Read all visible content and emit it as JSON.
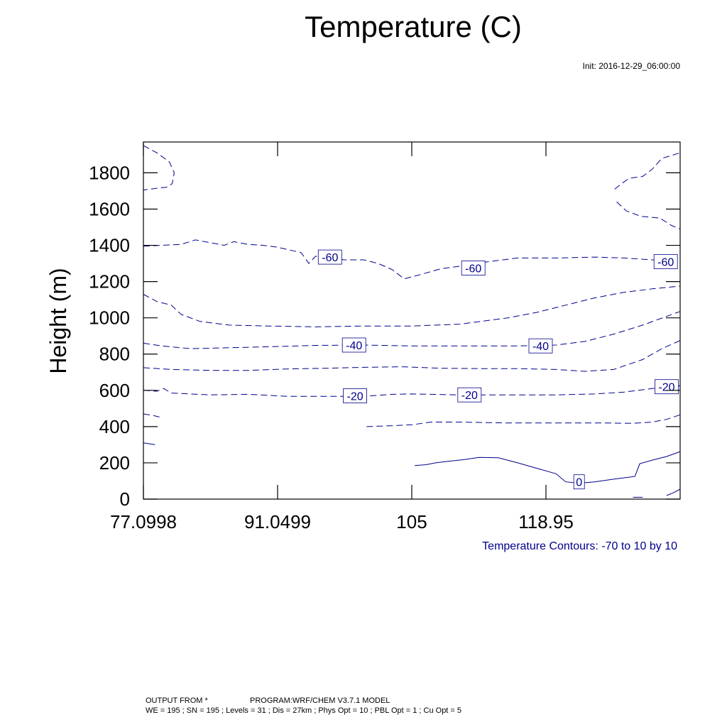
{
  "title": "Temperature   (C)",
  "init_label": "Init: 2016-12-29_06:00:00",
  "legend_label": "Temperature Contours: -70 to 10 by 10",
  "footer": {
    "line1_left": "OUTPUT FROM *",
    "line1_right": "PROGRAM:WRF/CHEM V3.7.1 MODEL",
    "line2": "WE = 195 ; SN = 195 ; Levels = 31 ; Dis = 27km ; Phys Opt = 10 ; PBL Opt = 1 ; Cu Opt = 5"
  },
  "colors": {
    "contour": "#00008b",
    "axis": "#000000",
    "background": "#ffffff"
  },
  "chart_data": {
    "type": "contour",
    "title": "Temperature   (C)",
    "xlabel": "",
    "ylabel": "Height (m)",
    "xlim": [
      77.0998,
      132.9
    ],
    "ylim": [
      0,
      1970
    ],
    "xticks": [
      77.0998,
      91.0499,
      105,
      118.95
    ],
    "xtick_labels": [
      "77.0998",
      "91.0499",
      "105",
      "118.95"
    ],
    "yticks": [
      0,
      200,
      400,
      600,
      800,
      1000,
      1200,
      1400,
      1600,
      1800
    ],
    "ytick_labels": [
      "0",
      "200",
      "400",
      "600",
      "800",
      "1000",
      "1200",
      "1400",
      "1600",
      "1800"
    ],
    "contour_levels": {
      "min": -70,
      "max": 10,
      "step": 10
    },
    "contours": [
      {
        "level": -70,
        "style": "dashed",
        "points": [
          [
            77.1,
            1950
          ],
          [
            78.5,
            1910
          ],
          [
            79.8,
            1860
          ],
          [
            80.3,
            1800
          ],
          [
            80.1,
            1740
          ],
          [
            79.5,
            1720
          ],
          [
            78.5,
            1715
          ],
          [
            77.1,
            1705
          ]
        ]
      },
      {
        "level": -70,
        "style": "dashed",
        "points": [
          [
            126.1,
            1710
          ],
          [
            126.8,
            1740
          ],
          [
            127.6,
            1770
          ],
          [
            129.0,
            1780
          ],
          [
            130.0,
            1820
          ],
          [
            131.0,
            1880
          ],
          [
            132.9,
            1910
          ]
        ]
      },
      {
        "level": -70,
        "style": "dashed",
        "points": [
          [
            126.3,
            1640
          ],
          [
            127.3,
            1590
          ],
          [
            128.8,
            1560
          ],
          [
            130.8,
            1550
          ],
          [
            132.0,
            1510
          ],
          [
            132.9,
            1490
          ]
        ]
      },
      {
        "level": -60,
        "style": "dashed",
        "points": [
          [
            77.1,
            1395
          ],
          [
            79,
            1400
          ],
          [
            81,
            1405
          ],
          [
            82.5,
            1430
          ],
          [
            84,
            1415
          ],
          [
            85.5,
            1400
          ],
          [
            86.5,
            1420
          ],
          [
            88,
            1405
          ],
          [
            89.5,
            1400
          ],
          [
            91,
            1390
          ],
          [
            93.5,
            1360
          ],
          [
            94.3,
            1300
          ],
          [
            95,
            1340
          ],
          [
            96,
            1330
          ],
          [
            98,
            1320
          ],
          [
            100,
            1320
          ],
          [
            101.5,
            1300
          ],
          [
            103,
            1265
          ],
          [
            104.2,
            1215
          ],
          [
            106,
            1240
          ],
          [
            108,
            1270
          ],
          [
            110,
            1285
          ],
          [
            113,
            1310
          ],
          [
            116,
            1330
          ],
          [
            120,
            1330
          ],
          [
            124,
            1335
          ],
          [
            127,
            1330
          ],
          [
            130,
            1320
          ],
          [
            132.9,
            1310
          ]
        ]
      },
      {
        "level": -50,
        "style": "dashed",
        "points": [
          [
            77.1,
            1130
          ],
          [
            78.5,
            1090
          ],
          [
            80,
            1070
          ],
          [
            81,
            1020
          ],
          [
            83,
            980
          ],
          [
            86,
            960
          ],
          [
            90,
            955
          ],
          [
            95,
            950
          ],
          [
            100,
            955
          ],
          [
            105,
            955
          ],
          [
            110,
            965
          ],
          [
            115,
            1000
          ],
          [
            118,
            1030
          ],
          [
            121,
            1070
          ],
          [
            124,
            1110
          ],
          [
            127,
            1140
          ],
          [
            130,
            1160
          ],
          [
            132.9,
            1175
          ]
        ]
      },
      {
        "level": -40,
        "style": "dashed",
        "points": [
          [
            77.1,
            860
          ],
          [
            79,
            845
          ],
          [
            82,
            830
          ],
          [
            86,
            835
          ],
          [
            90,
            840
          ],
          [
            95,
            848
          ],
          [
            100,
            850
          ],
          [
            105,
            845
          ],
          [
            110,
            845
          ],
          [
            116,
            845
          ],
          [
            120,
            850
          ],
          [
            123,
            870
          ],
          [
            126,
            910
          ],
          [
            129,
            960
          ],
          [
            132.9,
            1035
          ]
        ]
      },
      {
        "level": -30,
        "style": "dashed",
        "points": [
          [
            77.1,
            725
          ],
          [
            80,
            715
          ],
          [
            84,
            710
          ],
          [
            88,
            710
          ],
          [
            92,
            718
          ],
          [
            96,
            722
          ],
          [
            100,
            727
          ],
          [
            104,
            730
          ],
          [
            108,
            722
          ],
          [
            112,
            720
          ],
          [
            116,
            720
          ],
          [
            120,
            715
          ],
          [
            123,
            705
          ],
          [
            126,
            715
          ],
          [
            129,
            770
          ],
          [
            131,
            830
          ],
          [
            132.9,
            875
          ]
        ]
      },
      {
        "level": -20,
        "style": "dashed",
        "points": [
          [
            77.1,
            600
          ],
          [
            78.5,
            595
          ],
          [
            79.2,
            610
          ],
          [
            80,
            585
          ],
          [
            84,
            575
          ],
          [
            88,
            578
          ],
          [
            92,
            567
          ],
          [
            95,
            567
          ],
          [
            98,
            567
          ],
          [
            100,
            567
          ],
          [
            103,
            578
          ],
          [
            105,
            580
          ],
          [
            110,
            575
          ],
          [
            115,
            575
          ],
          [
            120,
            575
          ],
          [
            124,
            580
          ],
          [
            127,
            590
          ],
          [
            130,
            610
          ],
          [
            132.9,
            625
          ]
        ]
      },
      {
        "level": -10,
        "style": "dashed",
        "points": [
          [
            77.1,
            470
          ],
          [
            78.2,
            460
          ],
          [
            79.0,
            450
          ]
        ]
      },
      {
        "level": -10,
        "style": "dashed",
        "points": [
          [
            100.3,
            400
          ],
          [
            103,
            405
          ],
          [
            105,
            410
          ],
          [
            107,
            425
          ],
          [
            110,
            425
          ],
          [
            115,
            420
          ],
          [
            120,
            420
          ],
          [
            125,
            420
          ],
          [
            128,
            418
          ],
          [
            130,
            425
          ],
          [
            131.5,
            440
          ],
          [
            132.9,
            465
          ]
        ]
      },
      {
        "level": 0,
        "style": "solid",
        "points": [
          [
            77.1,
            310
          ],
          [
            78.3,
            300
          ]
        ]
      },
      {
        "level": 0,
        "style": "solid",
        "points": [
          [
            105.3,
            185
          ],
          [
            106.5,
            190
          ],
          [
            107.5,
            200
          ],
          [
            109,
            210
          ],
          [
            110.5,
            218
          ],
          [
            112,
            230
          ],
          [
            114,
            228
          ],
          [
            116,
            200
          ],
          [
            118,
            170
          ],
          [
            120,
            140
          ],
          [
            121,
            95
          ],
          [
            122.5,
            88
          ],
          [
            124,
            95
          ],
          [
            126,
            110
          ],
          [
            128.2,
            125
          ],
          [
            128.7,
            195
          ],
          [
            130,
            215
          ],
          [
            131.5,
            235
          ],
          [
            132.9,
            262
          ]
        ]
      },
      {
        "level": 0,
        "style": "solid",
        "points": [
          [
            128.0,
            10
          ],
          [
            129.0,
            10
          ]
        ]
      },
      {
        "level": 0,
        "style": "solid",
        "points": [
          [
            131.5,
            20
          ],
          [
            132.2,
            35
          ],
          [
            132.9,
            55
          ]
        ]
      }
    ],
    "contour_labels": [
      {
        "text": "-60",
        "x": 96.5,
        "y": 1335
      },
      {
        "text": "-60",
        "x": 111.4,
        "y": 1275
      },
      {
        "text": "-60",
        "x": 131.4,
        "y": 1310
      },
      {
        "text": "-40",
        "x": 99.0,
        "y": 850
      },
      {
        "text": "-40",
        "x": 118.4,
        "y": 845
      },
      {
        "text": "-20",
        "x": 99.1,
        "y": 570
      },
      {
        "text": "-20",
        "x": 111.0,
        "y": 575
      },
      {
        "text": "-20",
        "x": 131.5,
        "y": 620
      },
      {
        "text": "0",
        "x": 122.4,
        "y": 95
      }
    ]
  }
}
